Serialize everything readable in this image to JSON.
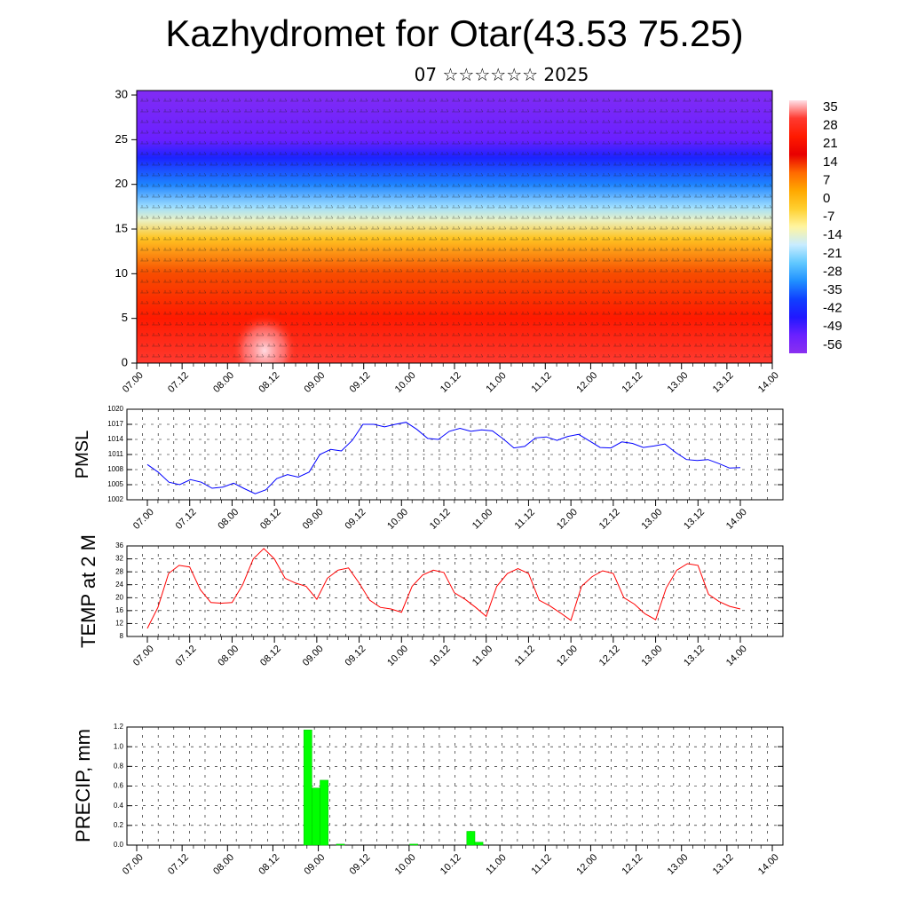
{
  "header": {
    "title": "Kazhydromet for Otar(43.53 75.25)",
    "subtitle": "07 ☆☆☆☆☆☆ 2025"
  },
  "time_labels": [
    "07.00",
    "07.12",
    "08.00",
    "08.12",
    "09.00",
    "09.12",
    "10.00",
    "10.12",
    "11.00",
    "11.12",
    "12.00",
    "12.12",
    "13.00",
    "13.12",
    "14.00"
  ],
  "colors": {
    "pmsl_line": "#0000ff",
    "temp_line": "#ff0000",
    "precip_bar": "#00ff00",
    "colorbar": [
      "#ffe0e8",
      "#ff3a30",
      "#ff1a00",
      "#e80000",
      "#ff6a00",
      "#ffa800",
      "#ffd030",
      "#fff5a0",
      "#c8ecff",
      "#60c8ff",
      "#2090ff",
      "#1040ff",
      "#2018ff",
      "#6a20ff",
      "#8a30f0"
    ]
  },
  "chart_data": [
    {
      "type": "heatmap",
      "title": "",
      "xlabel": "",
      "ylabel": "",
      "x_tick_labels": [
        "07.00",
        "07.12",
        "08.00",
        "08.12",
        "09.00",
        "09.12",
        "10.00",
        "10.12",
        "11.00",
        "11.12",
        "12.00",
        "12.12",
        "13.00",
        "13.12",
        "14.00"
      ],
      "y_ticks": [
        0,
        5,
        10,
        15,
        20,
        25,
        30
      ],
      "ylim": [
        0,
        30.5
      ],
      "colorbar_labels": [
        35,
        28,
        21,
        14,
        7,
        0,
        -7,
        -14,
        -21,
        -28,
        -35,
        -42,
        -49,
        -56
      ],
      "vertical_profile": [
        {
          "level": 0,
          "value": 30
        },
        {
          "level": 5,
          "value": 24
        },
        {
          "level": 10,
          "value": 10
        },
        {
          "level": 14,
          "value": -5
        },
        {
          "level": 16,
          "value": -14
        },
        {
          "level": 17.5,
          "value": -20
        },
        {
          "level": 20,
          "value": -35
        },
        {
          "level": 23,
          "value": -50
        },
        {
          "level": 25,
          "value": -56
        },
        {
          "level": 30,
          "value": -60
        }
      ]
    },
    {
      "type": "line",
      "ylabel": "PMSL",
      "ylim": [
        1002,
        1020
      ],
      "y_ticks": [
        1002,
        1005,
        1008,
        1011,
        1014,
        1017,
        1020
      ],
      "x_tick_labels": [
        "07.00",
        "07.12",
        "08.00",
        "08.12",
        "09.00",
        "09.12",
        "10.00",
        "10.12",
        "11.00",
        "11.12",
        "12.00",
        "12.12",
        "13.00",
        "13.12",
        "14.00"
      ],
      "series": [
        {
          "values": [
            1009,
            1007.5,
            1005.5,
            1005,
            1006,
            1005.5,
            1004.3,
            1004.5,
            1005.3,
            1004.2,
            1003.2,
            1004,
            1006.2,
            1007,
            1006.5,
            1007.5,
            1011,
            1012,
            1011.7,
            1013.8,
            1017,
            1017,
            1016.5,
            1017,
            1017.4,
            1016,
            1014.2,
            1014,
            1015.6,
            1016.2,
            1015.6,
            1015.9,
            1015.7,
            1014.1,
            1012.3,
            1012.6,
            1014.3,
            1014.5,
            1013.8,
            1014.6,
            1015,
            1013.7,
            1012.4,
            1012.3,
            1013.5,
            1013.2,
            1012.4,
            1012.7,
            1013.1,
            1011.4,
            1010,
            1009.8,
            1010,
            1009.2,
            1008.3,
            1008.4
          ]
        }
      ]
    },
    {
      "type": "line",
      "ylabel": "TEMP at 2 M",
      "ylim": [
        8,
        36
      ],
      "y_ticks": [
        8,
        12,
        16,
        20,
        24,
        28,
        32,
        36
      ],
      "x_tick_labels": [
        "07.00",
        "07.12",
        "08.00",
        "08.12",
        "09.00",
        "09.12",
        "10.00",
        "10.12",
        "11.00",
        "11.12",
        "12.00",
        "12.12",
        "13.00",
        "13.12",
        "14.00"
      ],
      "series": [
        {
          "values": [
            10.5,
            17,
            27.5,
            30,
            29.5,
            22.5,
            18.5,
            18.3,
            18.5,
            24,
            32,
            35.2,
            32,
            26,
            24.5,
            23.5,
            19.5,
            26,
            28.5,
            29.2,
            24.5,
            19.2,
            17,
            16.5,
            15.5,
            23.5,
            27,
            28.5,
            27.8,
            21.5,
            19.5,
            17,
            14.2,
            23.5,
            27.5,
            29,
            27.5,
            19.2,
            17.5,
            15.3,
            13,
            23.5,
            26.5,
            28.3,
            27.5,
            20,
            18,
            15,
            13.2,
            23,
            28.5,
            30.5,
            30,
            21,
            18.8,
            17.3,
            16.5
          ]
        }
      ]
    },
    {
      "type": "bar",
      "ylabel": "PRECIP, mm",
      "ylim": [
        0,
        1.2
      ],
      "y_ticks": [
        "0.0",
        "0.2",
        "0.4",
        "0.6",
        "0.8",
        "1.0",
        "1.2"
      ],
      "x_tick_labels": [
        "07.00",
        "07.12",
        "08.00",
        "08.12",
        "09.00",
        "09.12",
        "10.00",
        "10.12",
        "11.00",
        "11.12",
        "12.00",
        "12.12",
        "13.00",
        "13.12",
        "14.00"
      ],
      "values": [
        0,
        0,
        0,
        0,
        0,
        0,
        0,
        0,
        0,
        0,
        0,
        0,
        0,
        0,
        0,
        0,
        0,
        0,
        0,
        0,
        0,
        1.17,
        0.58,
        0.66,
        0,
        0.01,
        0,
        0,
        0,
        0,
        0,
        0,
        0,
        0,
        0.01,
        0,
        0,
        0,
        0,
        0,
        0,
        0.14,
        0.03,
        0,
        0,
        0,
        0,
        0,
        0,
        0,
        0,
        0,
        0,
        0,
        0,
        0,
        0,
        0,
        0,
        0,
        0,
        0,
        0,
        0,
        0,
        0,
        0,
        0,
        0,
        0,
        0,
        0,
        0,
        0,
        0,
        0,
        0,
        0,
        0
      ]
    }
  ]
}
